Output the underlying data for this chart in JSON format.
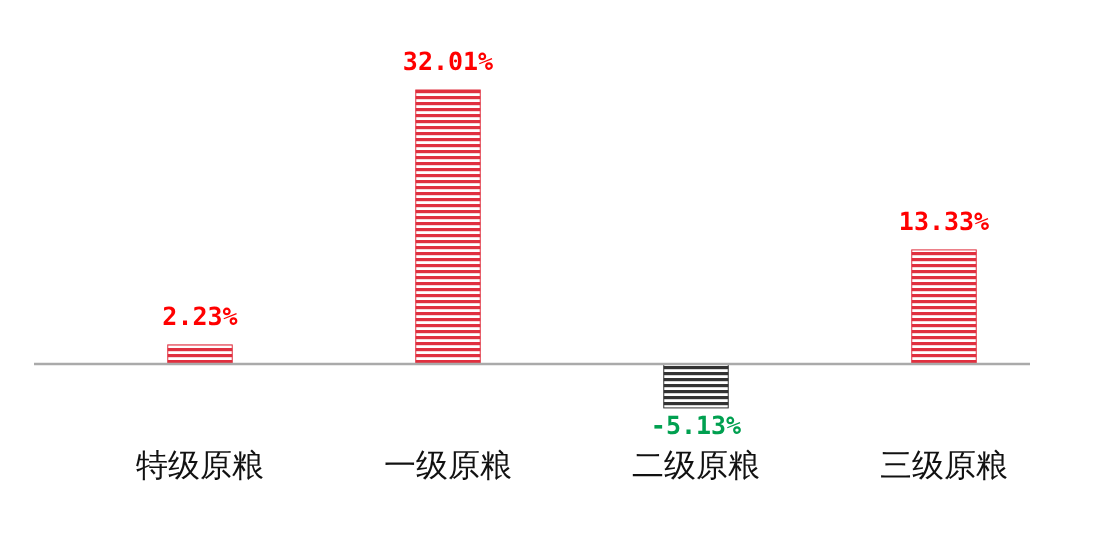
{
  "chart_data": {
    "type": "bar",
    "categories": [
      "特级原粮",
      "一级原粮",
      "二级原粮",
      "三级原粮"
    ],
    "values": [
      2.23,
      32.01,
      -5.13,
      13.33
    ],
    "colors": [
      "#e0303f",
      "#e0303f",
      "#333333",
      "#e0303f"
    ],
    "value_labels": [
      "2.23%",
      "32.01%",
      "-5.13%",
      "13.33%"
    ]
  }
}
